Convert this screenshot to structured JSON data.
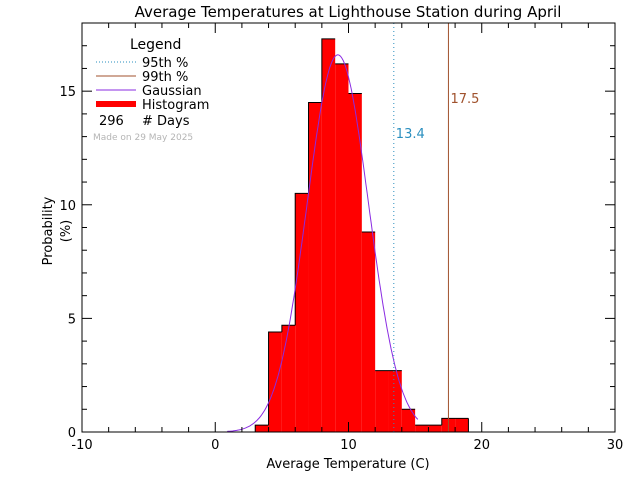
{
  "chart_data": {
    "type": "bar",
    "title": "Average Temperatures at Lighthouse Station during April",
    "xlabel": "Average Temperature (C)",
    "ylabel": "Probability",
    "ylabel_unit": "(%)",
    "xlim": [
      -10,
      30
    ],
    "ylim": [
      0,
      18
    ],
    "x_ticks": [
      -10,
      0,
      10,
      20,
      30
    ],
    "y_ticks": [
      0,
      5,
      10,
      15
    ],
    "histogram": {
      "bin_width": 1,
      "bin_starts": [
        3,
        4,
        5,
        6,
        7,
        8,
        9,
        10,
        11,
        12,
        13,
        14,
        15,
        16,
        17,
        18
      ],
      "values": [
        0.3,
        4.4,
        4.7,
        10.5,
        14.5,
        17.3,
        16.2,
        14.9,
        8.8,
        2.7,
        2.7,
        1.0,
        0.3,
        0.3,
        0.6,
        0.6
      ],
      "fill_color": "#ff0000",
      "edge_color": "#000000"
    },
    "gaussian": {
      "mean": 9.2,
      "sigma": 2.3,
      "peak": 16.6,
      "color": "#8a2be2"
    },
    "percentile_lines": [
      {
        "name": "95th %",
        "x": 13.4,
        "label": "13.4",
        "color": "#2a8fbf",
        "style": "dotted"
      },
      {
        "name": "99th %",
        "x": 17.5,
        "label": "17.5",
        "color": "#a0522d",
        "style": "solid"
      }
    ],
    "legend": {
      "title": "Legend",
      "placement": "top-left",
      "entries": [
        {
          "label": "95th %",
          "color": "#2a8fbf",
          "style": "dotted"
        },
        {
          "label": "99th %",
          "color": "#a0522d",
          "style": "solid"
        },
        {
          "label": "Gaussian",
          "color": "#8a2be2",
          "style": "solid"
        },
        {
          "label": "Histogram",
          "color": "#ff0000",
          "style": "thick"
        }
      ],
      "count_value": "296",
      "count_label": "# Days"
    },
    "annotation": "Made on 29 May 2025"
  }
}
